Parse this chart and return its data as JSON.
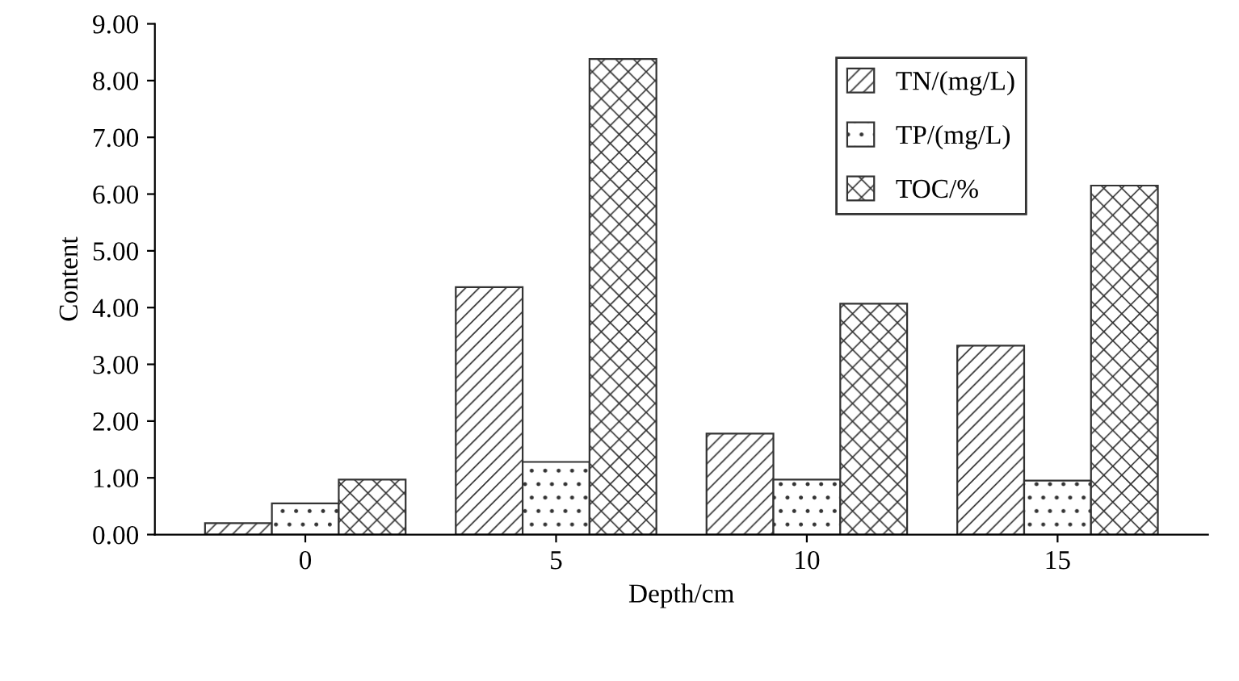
{
  "chart_data": {
    "type": "bar",
    "xlabel": "Depth/cm",
    "ylabel": "Content",
    "categories": [
      "0",
      "5",
      "10",
      "15"
    ],
    "series": [
      {
        "name": "TN/(mg/L)",
        "color": "#333333",
        "values": [
          0.2,
          4.36,
          1.78,
          3.33
        ]
      },
      {
        "name": "TP/(mg/L)",
        "color": "#333333",
        "values": [
          0.55,
          1.28,
          0.97,
          0.95
        ]
      },
      {
        "name": "TOC/%",
        "color": "#333333",
        "values": [
          0.97,
          8.38,
          4.07,
          6.15
        ]
      }
    ],
    "ylim": [
      0,
      9
    ],
    "yticks": [
      {
        "value": 0,
        "label": "0.00"
      },
      {
        "value": 1,
        "label": "1.00"
      },
      {
        "value": 2,
        "label": "2.00"
      },
      {
        "value": 3,
        "label": "3.00"
      },
      {
        "value": 4,
        "label": "4.00"
      },
      {
        "value": 5,
        "label": "5.00"
      },
      {
        "value": 6,
        "label": "6.00"
      },
      {
        "value": 7,
        "label": "7.00"
      },
      {
        "value": 8,
        "label": "8.00"
      },
      {
        "value": 9,
        "label": "9.00"
      }
    ],
    "grid": false,
    "legend": "top right"
  }
}
